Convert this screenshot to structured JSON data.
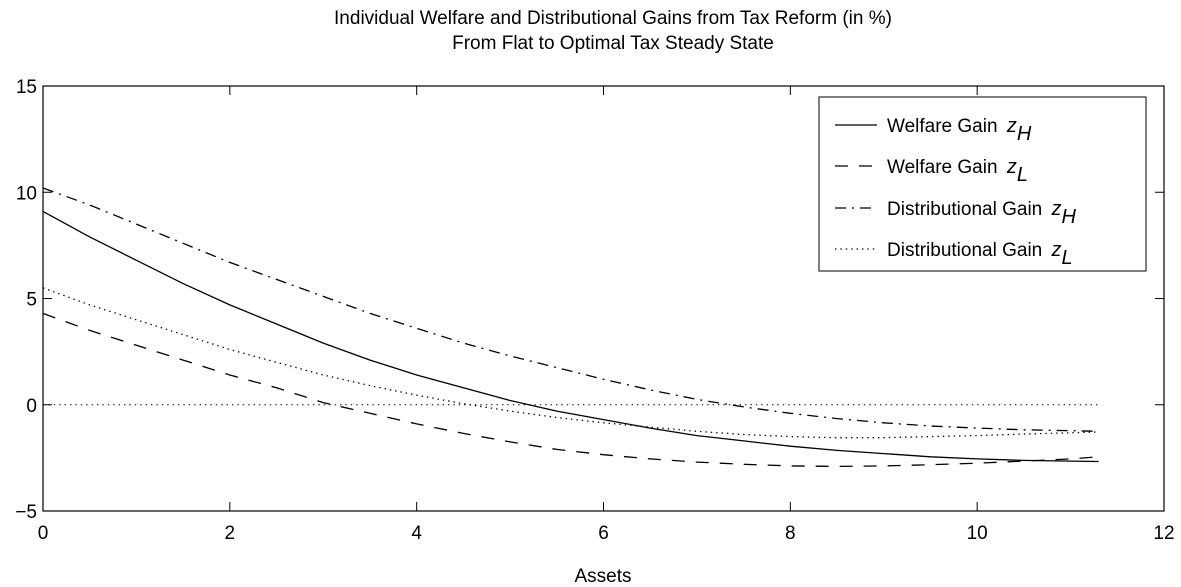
{
  "chart_data": {
    "type": "line",
    "title": "Individual Welfare and Distributional Gains from Tax Reform (in %)",
    "subtitle": "From Flat to Optimal Tax Steady State",
    "xlabel": "Assets",
    "ylabel": "",
    "xlim": [
      0,
      12
    ],
    "ylim": [
      -5,
      15
    ],
    "xticks": [
      0,
      2,
      4,
      6,
      8,
      10,
      12
    ],
    "yticks": [
      -5,
      0,
      5,
      10,
      15
    ],
    "xtick_labels": [
      "0",
      "2",
      "4",
      "6",
      "8",
      "10",
      "12"
    ],
    "ytick_labels": [
      "−5",
      "0",
      "5",
      "10",
      "15"
    ],
    "grid": false,
    "legend_position": "top-right",
    "x": [
      0,
      0.5,
      1,
      1.5,
      2,
      2.5,
      3,
      3.5,
      4,
      4.5,
      5,
      5.5,
      6,
      6.5,
      7,
      7.5,
      8,
      8.5,
      9,
      9.5,
      10,
      10.5,
      11,
      11.3
    ],
    "series": [
      {
        "name": "Welfare Gain",
        "name_symbol": "z",
        "name_subscript": "H",
        "style": "solid",
        "values": [
          9.1,
          7.9,
          6.8,
          5.7,
          4.7,
          3.8,
          2.9,
          2.1,
          1.4,
          0.8,
          0.2,
          -0.3,
          -0.7,
          -1.1,
          -1.45,
          -1.7,
          -1.95,
          -2.15,
          -2.3,
          -2.45,
          -2.55,
          -2.62,
          -2.65,
          -2.67
        ]
      },
      {
        "name": "Welfare Gain",
        "name_symbol": "z",
        "name_subscript": "L",
        "style": "dashed",
        "values": [
          4.3,
          3.5,
          2.8,
          2.1,
          1.4,
          0.8,
          0.1,
          -0.4,
          -0.9,
          -1.35,
          -1.75,
          -2.1,
          -2.35,
          -2.55,
          -2.7,
          -2.8,
          -2.88,
          -2.9,
          -2.88,
          -2.82,
          -2.75,
          -2.65,
          -2.55,
          -2.45
        ]
      },
      {
        "name": "Distributional Gain",
        "name_symbol": "z",
        "name_subscript": "H",
        "style": "dashdot",
        "values": [
          10.2,
          9.4,
          8.5,
          7.6,
          6.7,
          5.9,
          5.1,
          4.3,
          3.6,
          2.9,
          2.3,
          1.75,
          1.2,
          0.7,
          0.25,
          -0.1,
          -0.4,
          -0.65,
          -0.85,
          -1.0,
          -1.1,
          -1.18,
          -1.22,
          -1.25
        ]
      },
      {
        "name": "Distributional Gain",
        "name_symbol": "z",
        "name_subscript": "L",
        "style": "dotted",
        "values": [
          5.5,
          4.7,
          4.0,
          3.3,
          2.6,
          2.0,
          1.4,
          0.9,
          0.45,
          0.05,
          -0.3,
          -0.6,
          -0.85,
          -1.05,
          -1.25,
          -1.4,
          -1.5,
          -1.55,
          -1.55,
          -1.5,
          -1.45,
          -1.38,
          -1.32,
          -1.28
        ]
      }
    ],
    "reference_line": {
      "y": 0,
      "x_range": [
        0,
        11.3
      ],
      "style": "dotted"
    }
  }
}
